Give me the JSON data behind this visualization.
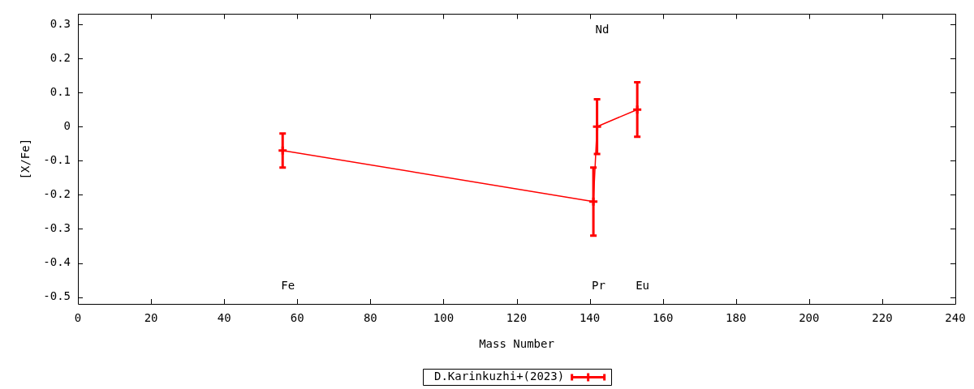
{
  "chart_data": {
    "type": "line",
    "xlabel": "Mass Number",
    "ylabel": "[X/Fe]",
    "x": [
      56,
      141,
      142,
      153
    ],
    "series": [
      {
        "name": "D.Karinkuzhi+(2023)",
        "color": "#ff0000",
        "values": [
          -0.07,
          -0.22,
          0.0,
          0.05
        ],
        "errors": [
          0.05,
          0.1,
          0.08,
          0.08
        ]
      }
    ],
    "xlim": [
      0,
      240
    ],
    "xticks": [
      0,
      20,
      40,
      60,
      80,
      100,
      120,
      140,
      160,
      180,
      200,
      220,
      240
    ],
    "ylim": [
      -0.52,
      0.33
    ],
    "yticks": [
      -0.5,
      -0.4,
      -0.3,
      -0.2,
      -0.1,
      0,
      0.1,
      0.2,
      0.3
    ],
    "legend": "bottom",
    "marker": "cross",
    "annotations": [
      "Fe",
      "Pr",
      "Nd",
      "Eu"
    ]
  }
}
